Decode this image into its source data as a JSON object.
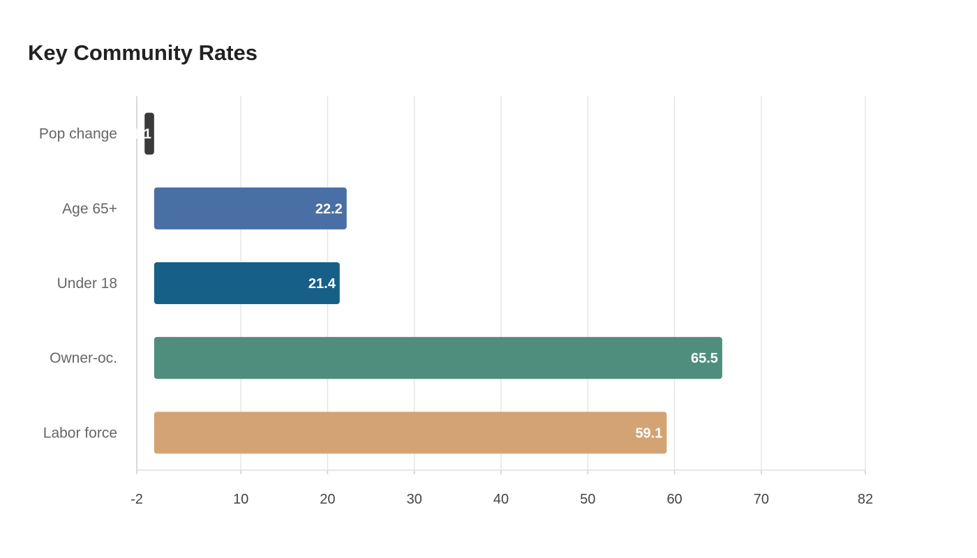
{
  "chart_data": {
    "type": "bar",
    "orientation": "horizontal",
    "title": "Key Community Rates",
    "xlabel": "",
    "ylabel": "",
    "categories": [
      "Pop change",
      "Age 65+",
      "Under 18",
      "Owner-oc.",
      "Labor force"
    ],
    "values": [
      -1.1,
      22.2,
      21.4,
      65.5,
      59.1
    ],
    "data_labels": [
      "-1.1",
      "22.2",
      "21.4",
      "65.5",
      "59.1"
    ],
    "colors": [
      "#3a3a3a",
      "#4a6fa5",
      "#166088",
      "#4f8e7c",
      "#d4a373"
    ],
    "xlim": [
      -2,
      82
    ],
    "xticks": [
      -2,
      10,
      20,
      30,
      40,
      50,
      60,
      70,
      82
    ],
    "grid": true,
    "legend": "none"
  }
}
